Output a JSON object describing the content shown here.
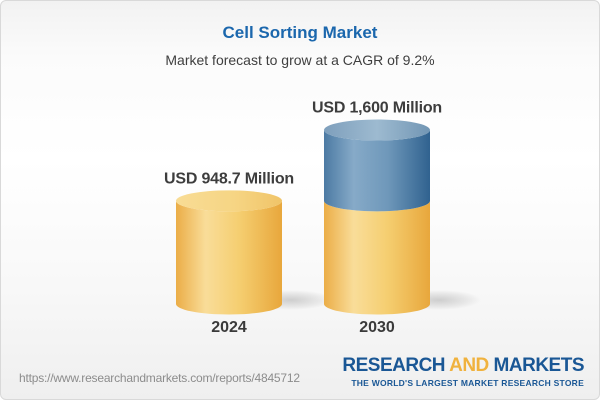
{
  "header": {
    "title": "Cell Sorting Market",
    "subtitle": "Market forecast to grow at a CAGR of 9.2%"
  },
  "chart_data": {
    "type": "bar",
    "style": "3d-cylinder-stacked",
    "title": "Cell Sorting Market",
    "subtitle": "Market forecast to grow at a CAGR of 9.2%",
    "cagr_percent": 9.2,
    "unit": "USD Million",
    "categories": [
      "2024",
      "2030"
    ],
    "totals": [
      948.7,
      1600
    ],
    "bar_labels": [
      "USD 948.7 Million",
      "USD 1,600 Million"
    ],
    "series": [
      {
        "name": "market-size-base",
        "gradient": "gold",
        "values": [
          948.7,
          948.7
        ]
      },
      {
        "name": "forecast-growth",
        "gradient": "blue",
        "values": [
          0,
          651.3
        ]
      }
    ],
    "ylim": [
      0,
      1600
    ],
    "axes_visible": false,
    "legend_position": "none"
  },
  "footer": {
    "url": "https://www.researchandmarkets.com/reports/4845712",
    "logo": {
      "part1": "RESEARCH",
      "part2": "AND",
      "part3": "MARKETS",
      "tagline": "THE WORLD'S LARGEST MARKET RESEARCH STORE"
    }
  },
  "colors": {
    "title_blue": "#1B67AD",
    "label_dark": "#3D3D3D",
    "url_gray": "#8C8C8C",
    "logo_blue": "#1A5795",
    "logo_gold": "#F0B23E",
    "bar_gold": "#F3C763",
    "bar_gold_edge": "#E8A73C",
    "bar_gold_top": "#F6D584",
    "bar_blue": "#4C7CA8",
    "bar_blue_edge": "#30628F",
    "bar_blue_top": "#8FAEC7"
  }
}
